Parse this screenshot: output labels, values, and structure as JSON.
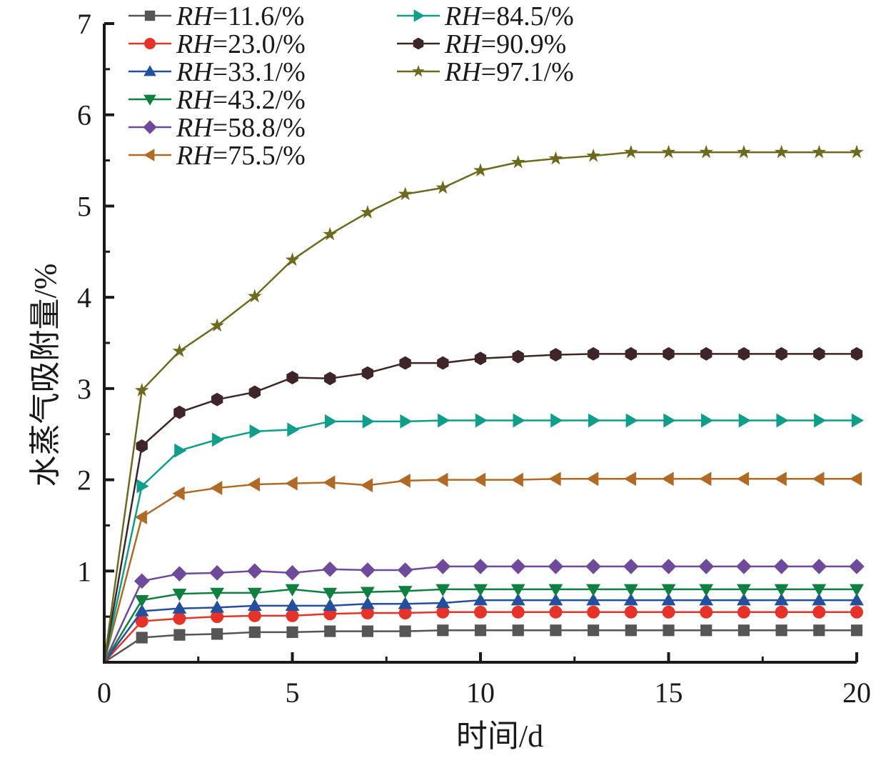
{
  "chart_data": {
    "type": "line",
    "title": "",
    "xlabel": "时间/d",
    "ylabel": "水蒸气吸附量/%",
    "xlim": [
      0,
      20
    ],
    "ylim": [
      0,
      7
    ],
    "xticks": [
      0,
      5,
      10,
      15,
      20
    ],
    "xtick_labels": [
      "0",
      "5",
      "10",
      "15",
      "20"
    ],
    "yticks": [
      1,
      2,
      3,
      4,
      5,
      6,
      7
    ],
    "ytick_labels": [
      "1",
      "2",
      "3",
      "4",
      "5",
      "6",
      "7"
    ],
    "grid": false,
    "legend_position": "top-left",
    "x": [
      0,
      1,
      2,
      3,
      4,
      5,
      6,
      7,
      8,
      9,
      10,
      11,
      12,
      13,
      14,
      15,
      16,
      17,
      18,
      19,
      20
    ],
    "series": [
      {
        "name_prefix": "RH",
        "name_suffix": "=11.6/%",
        "color": "#555555",
        "marker": "square",
        "values": [
          0,
          0.27,
          0.3,
          0.31,
          0.33,
          0.33,
          0.34,
          0.34,
          0.34,
          0.35,
          0.35,
          0.35,
          0.35,
          0.35,
          0.35,
          0.35,
          0.35,
          0.35,
          0.35,
          0.35,
          0.35
        ]
      },
      {
        "name_prefix": "RH",
        "name_suffix": "=23.0/%",
        "color": "#e5332a",
        "marker": "circle",
        "values": [
          0,
          0.45,
          0.48,
          0.5,
          0.51,
          0.51,
          0.53,
          0.54,
          0.54,
          0.55,
          0.55,
          0.55,
          0.55,
          0.55,
          0.55,
          0.55,
          0.55,
          0.55,
          0.55,
          0.55,
          0.55
        ]
      },
      {
        "name_prefix": "RH",
        "name_suffix": "=33.1/%",
        "color": "#234f9c",
        "marker": "triangle-up",
        "values": [
          0,
          0.56,
          0.59,
          0.6,
          0.62,
          0.62,
          0.62,
          0.64,
          0.64,
          0.65,
          0.68,
          0.68,
          0.68,
          0.68,
          0.68,
          0.68,
          0.68,
          0.68,
          0.68,
          0.68,
          0.68
        ]
      },
      {
        "name_prefix": "RH",
        "name_suffix": "=43.2/%",
        "color": "#0f8040",
        "marker": "triangle-down",
        "values": [
          0,
          0.68,
          0.75,
          0.76,
          0.76,
          0.8,
          0.76,
          0.77,
          0.78,
          0.8,
          0.8,
          0.8,
          0.8,
          0.8,
          0.8,
          0.8,
          0.8,
          0.8,
          0.8,
          0.8,
          0.8
        ]
      },
      {
        "name_prefix": "RH",
        "name_suffix": "=58.8/%",
        "color": "#6e4a9a",
        "marker": "diamond",
        "values": [
          0,
          0.89,
          0.97,
          0.98,
          1.0,
          0.98,
          1.02,
          1.01,
          1.01,
          1.05,
          1.05,
          1.05,
          1.05,
          1.05,
          1.05,
          1.05,
          1.05,
          1.05,
          1.05,
          1.05,
          1.05
        ]
      },
      {
        "name_prefix": "RH",
        "name_suffix": "=75.5/%",
        "color": "#b06a25",
        "marker": "triangle-left",
        "values": [
          0,
          1.59,
          1.85,
          1.91,
          1.95,
          1.96,
          1.97,
          1.94,
          1.99,
          2.0,
          2.0,
          2.0,
          2.01,
          2.01,
          2.01,
          2.01,
          2.01,
          2.01,
          2.01,
          2.01,
          2.01
        ]
      },
      {
        "name_prefix": "RH",
        "name_suffix": "=84.5/%",
        "color": "#0e9e8a",
        "marker": "triangle-right",
        "values": [
          0,
          1.93,
          2.32,
          2.44,
          2.53,
          2.55,
          2.64,
          2.64,
          2.64,
          2.65,
          2.65,
          2.65,
          2.65,
          2.65,
          2.65,
          2.65,
          2.65,
          2.65,
          2.65,
          2.65,
          2.65
        ]
      },
      {
        "name_prefix": "RH",
        "name_suffix": "=90.9%",
        "color": "#3d2528",
        "marker": "hexagon",
        "values": [
          0,
          2.37,
          2.74,
          2.88,
          2.96,
          3.12,
          3.11,
          3.17,
          3.28,
          3.28,
          3.33,
          3.35,
          3.37,
          3.38,
          3.38,
          3.38,
          3.38,
          3.38,
          3.38,
          3.38,
          3.38
        ]
      },
      {
        "name_prefix": "RH",
        "name_suffix": "=97.1/%",
        "color": "#6b6a1f",
        "marker": "star",
        "values": [
          0,
          2.98,
          3.41,
          3.69,
          4.01,
          4.41,
          4.69,
          4.93,
          5.13,
          5.2,
          5.39,
          5.48,
          5.52,
          5.55,
          5.59,
          5.59,
          5.59,
          5.59,
          5.59,
          5.59,
          5.59
        ]
      }
    ]
  }
}
